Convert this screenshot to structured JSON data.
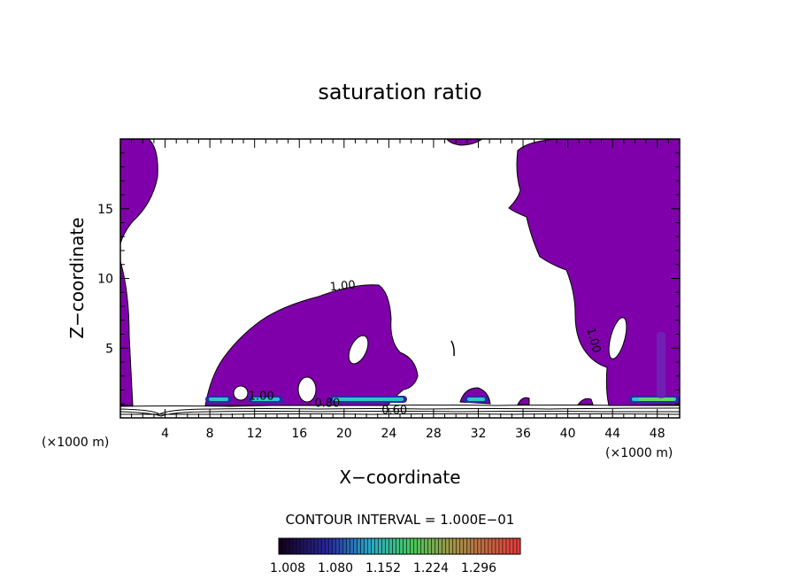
{
  "chart_data": {
    "type": "heatmap",
    "title": "saturation ratio",
    "xlabel": "X−coordinate",
    "ylabel": "Z−coordinate",
    "x_unit_label": "(×1000 m)",
    "z_unit_label": "(×1000 m)",
    "xlim": [
      0,
      50
    ],
    "ylim": [
      0,
      20
    ],
    "x_ticks": [
      "4",
      "8",
      "12",
      "16",
      "20",
      "24",
      "28",
      "32",
      "36",
      "40",
      "44",
      "48"
    ],
    "x_tick_values": [
      4,
      8,
      12,
      16,
      20,
      24,
      28,
      32,
      36,
      40,
      44,
      48
    ],
    "y_ticks": [
      "5",
      "10",
      "15"
    ],
    "y_tick_values": [
      5,
      10,
      15
    ],
    "contour_interval_text": "CONTOUR INTERVAL = 1.000E−01",
    "contour_labels": [
      {
        "text": "1.00",
        "x": 19.9,
        "z": 9.2
      },
      {
        "text": "1.00",
        "x": 42.0,
        "z": 5.5
      },
      {
        "text": "1.00",
        "x": 12.6,
        "z": 1.3
      },
      {
        "text": "0.80",
        "x": 18.5,
        "z": 0.8
      },
      {
        "text": "0.60",
        "x": 24.5,
        "z": 0.3
      }
    ],
    "colorbar_labels": [
      "1.008",
      "1.080",
      "1.152",
      "1.224",
      "1.296"
    ],
    "colorbar_values": [
      1.008,
      1.08,
      1.152,
      1.224,
      1.296
    ],
    "fill_color": "#7f00aa",
    "grid": false
  }
}
